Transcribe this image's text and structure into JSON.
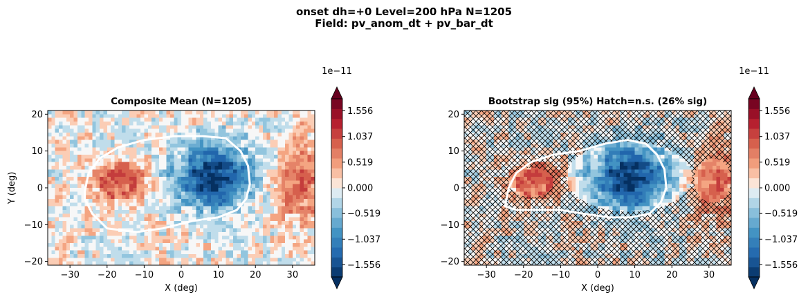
{
  "figure": {
    "suptitle_line1": "onset  dh=+0   Level=200 hPa   N=1205",
    "suptitle_line2": "Field: pv_anom_dt + pv_bar_dt"
  },
  "chart_data": [
    {
      "type": "heatmap",
      "title": "Composite Mean  (N=1205)",
      "xlabel": "X (deg)",
      "ylabel": "Y (deg)",
      "xlim": [
        -36,
        36
      ],
      "ylim": [
        -21,
        21
      ],
      "xticks": [
        -30,
        -20,
        -10,
        0,
        10,
        20,
        30
      ],
      "yticks": [
        -20,
        -10,
        0,
        10,
        20
      ],
      "colormap": "RdBu_r",
      "colorbar": {
        "offset_label": "1e−11",
        "range": [
          -1.8,
          1.8
        ],
        "ticks": [
          -1.556,
          -1.037,
          -0.519,
          0.0,
          0.519,
          1.037,
          1.556
        ],
        "tick_labels": [
          "−1.556",
          "−1.037",
          "−0.519",
          "0.000",
          "0.519",
          "1.037",
          "1.556"
        ],
        "extend": "both"
      },
      "features": [
        {
          "kind": "negative",
          "x": 9,
          "y": 3,
          "amplitude": -1.8,
          "sx": 7,
          "sy": 6
        },
        {
          "kind": "positive",
          "x": -17,
          "y": 2,
          "amplitude": 1.1,
          "sx": 5,
          "sy": 4
        },
        {
          "kind": "positive",
          "x": 32,
          "y": 1,
          "amplitude": 0.9,
          "sx": 5,
          "sy": 7
        }
      ],
      "contour": {
        "color": "#ffffff",
        "points": [
          [
            -26,
            -1
          ],
          [
            -25,
            4
          ],
          [
            -22,
            8
          ],
          [
            -17,
            11
          ],
          [
            -10,
            13
          ],
          [
            -2,
            14
          ],
          [
            6,
            14
          ],
          [
            12,
            13.5
          ],
          [
            16,
            10
          ],
          [
            18,
            6
          ],
          [
            18.5,
            1
          ],
          [
            17.5,
            -3
          ],
          [
            15,
            -6
          ],
          [
            10,
            -8
          ],
          [
            3,
            -9
          ],
          [
            -5,
            -11
          ],
          [
            -12,
            -12
          ],
          [
            -20,
            -11
          ],
          [
            -24,
            -7
          ],
          [
            -26,
            -3
          ]
        ]
      },
      "hatch": false
    },
    {
      "type": "heatmap",
      "title": "Bootstrap sig (95%)  Hatch=n.s.  (26% sig)",
      "xlabel": "X (deg)",
      "ylabel": "",
      "xlim": [
        -36,
        36
      ],
      "ylim": [
        -21,
        21
      ],
      "xticks": [
        -30,
        -20,
        -10,
        0,
        10,
        20,
        30
      ],
      "yticks": [
        -20,
        -10,
        0,
        10,
        20
      ],
      "colormap": "RdBu_r",
      "colorbar": {
        "offset_label": "1e−11",
        "range": [
          -1.8,
          1.8
        ],
        "ticks": [
          -1.556,
          -1.037,
          -0.519,
          0.0,
          0.519,
          1.037,
          1.556
        ],
        "tick_labels": [
          "−1.556",
          "−1.037",
          "−0.519",
          "0.000",
          "0.519",
          "1.037",
          "1.556"
        ],
        "extend": "both"
      },
      "features": [
        {
          "kind": "negative",
          "x": 9,
          "y": 3,
          "amplitude": -1.8,
          "sx": 7,
          "sy": 6
        },
        {
          "kind": "positive",
          "x": -17,
          "y": 2,
          "amplitude": 1.1,
          "sx": 5,
          "sy": 4
        },
        {
          "kind": "positive",
          "x": 32,
          "y": 1,
          "amplitude": 0.9,
          "sx": 5,
          "sy": 7
        }
      ],
      "contour": {
        "color": "#ffffff",
        "points": [
          [
            -25,
            -5
          ],
          [
            -24,
            0
          ],
          [
            -22,
            4
          ],
          [
            -18,
            7
          ],
          [
            -12,
            9
          ],
          [
            -5,
            10
          ],
          [
            2,
            12
          ],
          [
            8,
            13
          ],
          [
            13,
            12
          ],
          [
            16,
            9
          ],
          [
            18,
            5
          ],
          [
            18.5,
            0
          ],
          [
            17,
            -4
          ],
          [
            14,
            -7
          ],
          [
            9,
            -8
          ],
          [
            3,
            -8
          ],
          [
            -4,
            -7
          ],
          [
            -10,
            -6
          ],
          [
            -16,
            -6
          ],
          [
            -22,
            -6
          ]
        ]
      },
      "hatch": true,
      "sig_percent": 26
    }
  ]
}
